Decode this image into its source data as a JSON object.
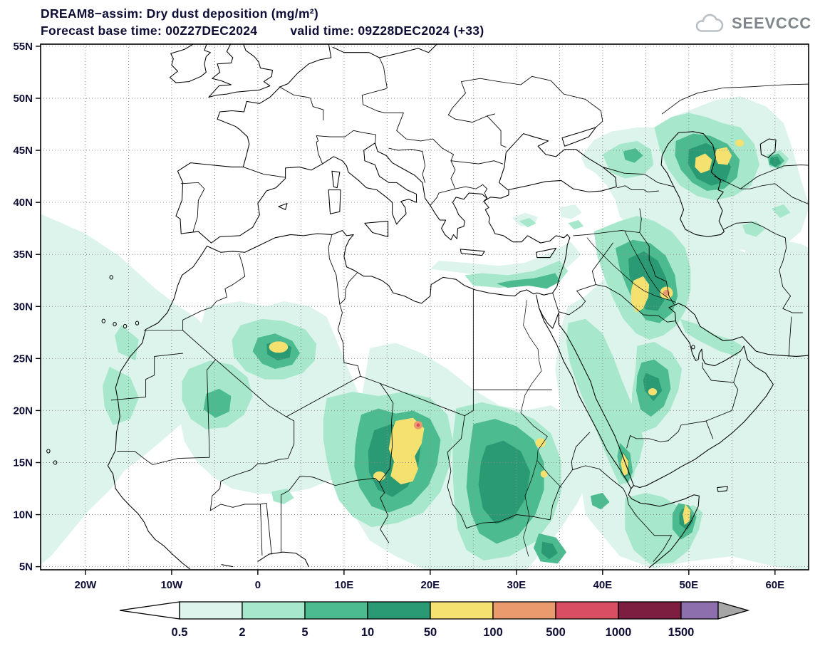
{
  "header": {
    "title": "DREAM8−assim: Dry dust deposition (mg/m²)",
    "base_time": "Forecast base time: 00Z27DEC2024",
    "valid_time": "valid time: 09Z28DEC2024 (+33)"
  },
  "logo": {
    "text": "SEEVCCC",
    "icon": "cloud-icon"
  },
  "text_color": "#0d0d35",
  "map": {
    "lon_min": -25.2,
    "lon_max": 63.9,
    "lat_min": 4.7,
    "lat_max": 55.2,
    "grid_step_deg": 5,
    "lon_ticks": [
      {
        "value": -20,
        "label": "20W"
      },
      {
        "value": -10,
        "label": "10W"
      },
      {
        "value": 0,
        "label": "0"
      },
      {
        "value": 10,
        "label": "10E"
      },
      {
        "value": 20,
        "label": "20E"
      },
      {
        "value": 30,
        "label": "30E"
      },
      {
        "value": 40,
        "label": "40E"
      },
      {
        "value": 50,
        "label": "50E"
      },
      {
        "value": 60,
        "label": "60E"
      }
    ],
    "lat_ticks": [
      {
        "value": 5,
        "label": "5N"
      },
      {
        "value": 10,
        "label": "10N"
      },
      {
        "value": 15,
        "label": "15N"
      },
      {
        "value": 20,
        "label": "20N"
      },
      {
        "value": 25,
        "label": "25N"
      },
      {
        "value": 30,
        "label": "30N"
      },
      {
        "value": 35,
        "label": "35N"
      },
      {
        "value": 40,
        "label": "40N"
      },
      {
        "value": 45,
        "label": "45N"
      },
      {
        "value": 50,
        "label": "50N"
      },
      {
        "value": 55,
        "label": "55N"
      }
    ]
  },
  "colorbar": {
    "labels": [
      "0.5",
      "2",
      "5",
      "10",
      "50",
      "100",
      "500",
      "1000",
      "1500"
    ],
    "colors": [
      "#ffffff",
      "#dcf4ec",
      "#a7e7cb",
      "#4cbb90",
      "#2a9a74",
      "#f4e170",
      "#eb9a6d",
      "#da4e63",
      "#7d1d40",
      "#8e6fad",
      "#a6a6a6"
    ]
  }
}
